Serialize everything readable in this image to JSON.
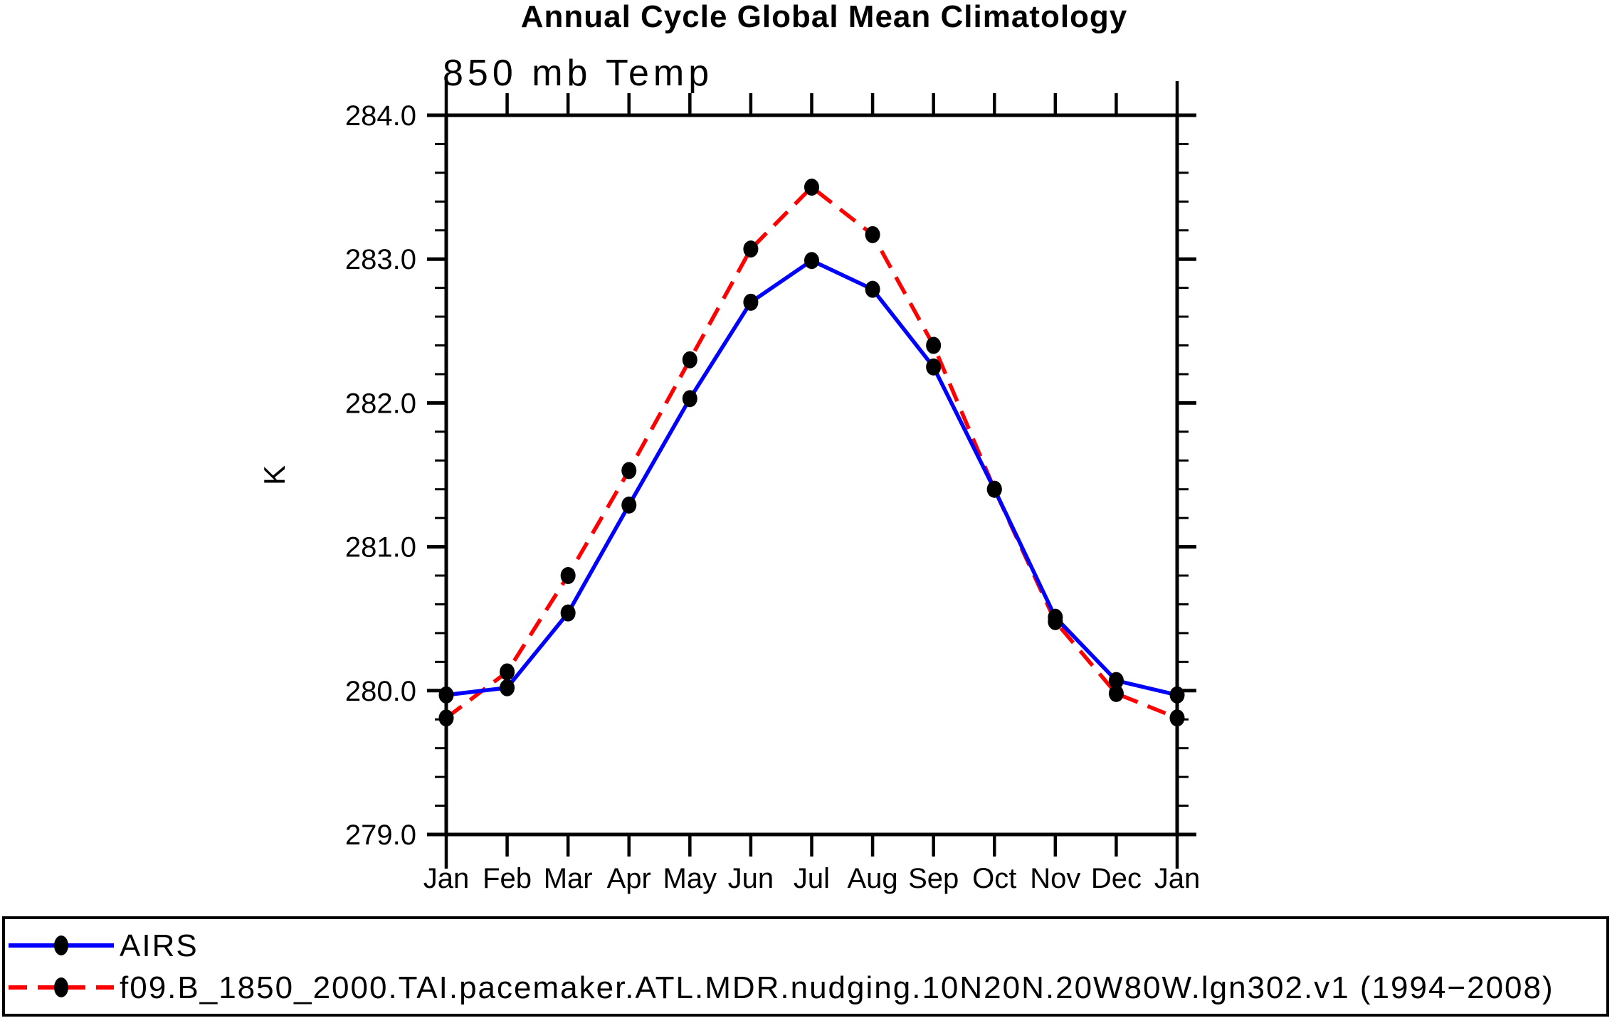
{
  "title": "Annual Cycle Global Mean Climatology",
  "subtitle": "850 mb Temp",
  "chart_data": {
    "type": "line",
    "title": "Annual Cycle Global Mean Climatology",
    "subtitle": "850 mb Temp",
    "xlabel": "",
    "ylabel": "K",
    "ylim": [
      279.0,
      284.0
    ],
    "ytick_interval": 1.0,
    "yminor_interval": 0.2,
    "ytick_labels": [
      "279.0",
      "280.0",
      "281.0",
      "282.0",
      "283.0",
      "284.0"
    ],
    "grid": false,
    "legend_position": "bottom",
    "categories": [
      "Jan",
      "Feb",
      "Mar",
      "Apr",
      "May",
      "Jun",
      "Jul",
      "Aug",
      "Sep",
      "Oct",
      "Nov",
      "Dec",
      "Jan"
    ],
    "series": [
      {
        "name": "AIRS",
        "color": "#0000ff",
        "line_style": "solid",
        "marker": "filled-circle",
        "marker_color": "#000000",
        "values": [
          279.97,
          280.02,
          280.54,
          281.29,
          282.03,
          282.7,
          282.99,
          282.79,
          282.25,
          281.4,
          280.51,
          280.07,
          279.97
        ]
      },
      {
        "name": "f09.B_1850_2000.TAI.pacemaker.ATL.MDR.nudging.10N20N.20W80W.lgn302.v1 (1994−2008)",
        "color": "#ff0000",
        "line_style": "dashed",
        "marker": "filled-circle",
        "marker_color": "#000000",
        "values": [
          279.81,
          280.13,
          280.8,
          281.53,
          282.3,
          283.07,
          283.5,
          283.17,
          282.4,
          281.4,
          280.48,
          279.98,
          279.81
        ]
      }
    ]
  },
  "colors": {
    "axis": "#000000",
    "background": "#ffffff",
    "airs_line": "#0000ff",
    "model_line": "#ff0000",
    "marker": "#000000"
  }
}
